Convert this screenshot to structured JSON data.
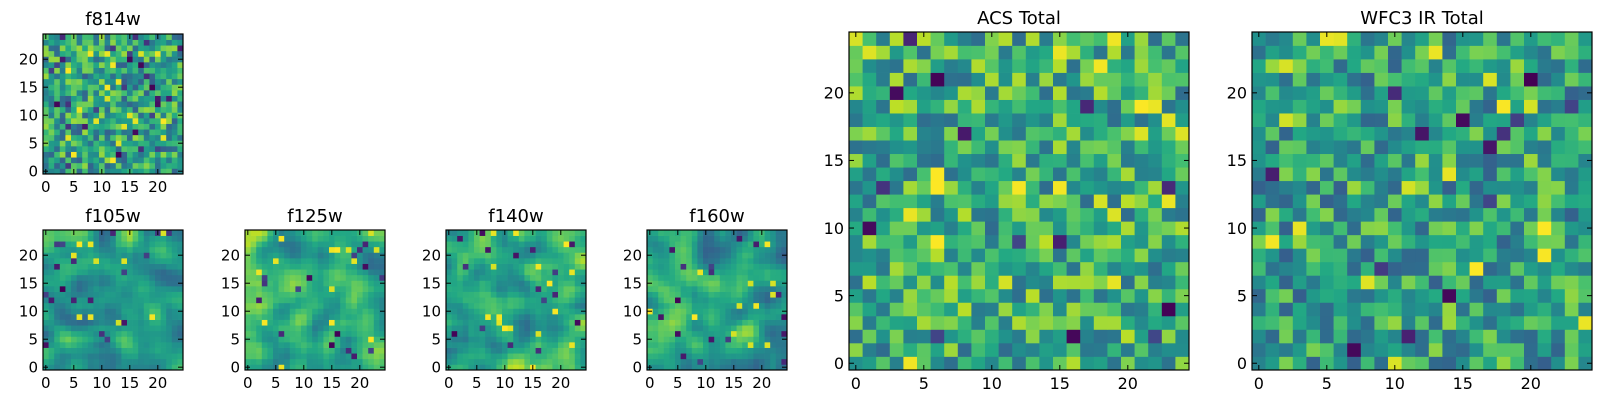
{
  "colormap": "viridis",
  "colors": {
    "axis": "#000000",
    "background": "#ffffff"
  },
  "chart_data": [
    {
      "id": "f814w",
      "type": "heatmap",
      "title": "f814w",
      "grid_size": 25,
      "xlim": [
        0,
        24
      ],
      "ylim": [
        0,
        24
      ],
      "xticks": [
        "0",
        "5",
        "10",
        "15",
        "20"
      ],
      "yticks": [
        "0",
        "5",
        "10",
        "15",
        "20"
      ],
      "seed": 11,
      "smooth": 0,
      "dark_cells": 28,
      "bright_cells": 20,
      "bias": 0.0
    },
    {
      "id": "f105w",
      "type": "heatmap",
      "title": "f105w",
      "grid_size": 25,
      "xlim": [
        0,
        24
      ],
      "ylim": [
        0,
        24
      ],
      "xticks": [
        "0",
        "5",
        "10",
        "15",
        "20"
      ],
      "yticks": [
        "0",
        "5",
        "10",
        "15",
        "20"
      ],
      "seed": 23,
      "smooth": 2,
      "dark_cells": 18,
      "bright_cells": 10,
      "bias": 0.02
    },
    {
      "id": "f125w",
      "type": "heatmap",
      "title": "f125w",
      "grid_size": 25,
      "xlim": [
        0,
        24
      ],
      "ylim": [
        0,
        24
      ],
      "xticks": [
        "0",
        "5",
        "10",
        "15",
        "20"
      ],
      "yticks": [
        "0",
        "5",
        "10",
        "15",
        "20"
      ],
      "seed": 37,
      "smooth": 2,
      "dark_cells": 16,
      "bright_cells": 14,
      "bias": 0.05
    },
    {
      "id": "f140w",
      "type": "heatmap",
      "title": "f140w",
      "grid_size": 25,
      "xlim": [
        0,
        24
      ],
      "ylim": [
        0,
        24
      ],
      "xticks": [
        "0",
        "5",
        "10",
        "15",
        "20"
      ],
      "yticks": [
        "0",
        "5",
        "10",
        "15",
        "20"
      ],
      "seed": 41,
      "smooth": 2,
      "dark_cells": 16,
      "bright_cells": 16,
      "bias": 0.06
    },
    {
      "id": "f160w",
      "type": "heatmap",
      "title": "f160w",
      "grid_size": 25,
      "xlim": [
        0,
        24
      ],
      "ylim": [
        0,
        24
      ],
      "xticks": [
        "0",
        "5",
        "10",
        "15",
        "20"
      ],
      "yticks": [
        "0",
        "5",
        "10",
        "15",
        "20"
      ],
      "seed": 53,
      "smooth": 2,
      "dark_cells": 18,
      "bright_cells": 12,
      "bias": 0.0
    },
    {
      "id": "acs-total",
      "type": "heatmap",
      "title": "ACS Total",
      "grid_size": 25,
      "xlim": [
        0,
        24
      ],
      "ylim": [
        0,
        24
      ],
      "xticks": [
        "0",
        "5",
        "10",
        "15",
        "20"
      ],
      "yticks": [
        "0",
        "5",
        "10",
        "15",
        "20"
      ],
      "seed": 67,
      "smooth": 0,
      "dark_cells": 14,
      "bright_cells": 22,
      "bias": 0.05
    },
    {
      "id": "wfc3-ir-total",
      "type": "heatmap",
      "title": "WFC3 IR Total",
      "grid_size": 25,
      "xlim": [
        0,
        24
      ],
      "ylim": [
        0,
        24
      ],
      "xticks": [
        "0",
        "5",
        "10",
        "15",
        "20"
      ],
      "yticks": [
        "0",
        "5",
        "10",
        "15",
        "20"
      ],
      "seed": 79,
      "smooth": 0,
      "dark_cells": 14,
      "bright_cells": 18,
      "bias": 0.0
    }
  ]
}
